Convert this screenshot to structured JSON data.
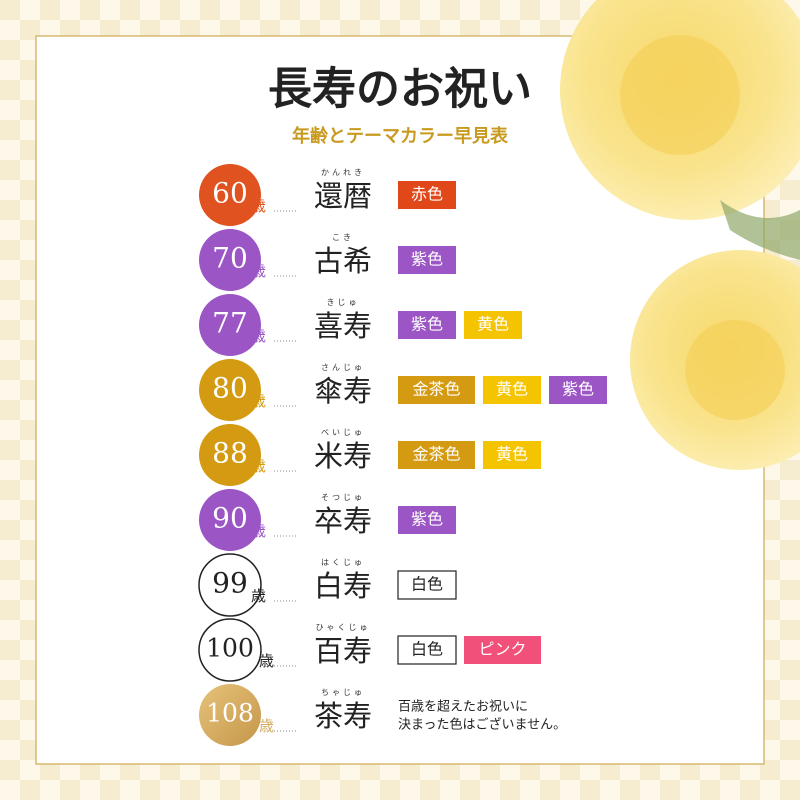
{
  "header": {
    "title": "長寿のお祝い",
    "subtitle": "年齢とテーマカラー早見表"
  },
  "unit": "歳",
  "rows": [
    {
      "age": 60,
      "circle_color": "#e0521f",
      "reading": "かんれき",
      "name": "還暦",
      "colors": [
        {
          "label": "赤色",
          "color": "#e0481a"
        }
      ]
    },
    {
      "age": 70,
      "circle_color": "#9b55c5",
      "reading": "こき",
      "name": "古希",
      "colors": [
        {
          "label": "紫色",
          "color": "#9b55c5"
        }
      ]
    },
    {
      "age": 77,
      "circle_color": "#9b55c5",
      "reading": "きじゅ",
      "name": "喜寿",
      "colors": [
        {
          "label": "紫色",
          "color": "#9b55c5"
        },
        {
          "label": "黄色",
          "color": "#f5c400"
        }
      ]
    },
    {
      "age": 80,
      "circle_color": "#d49b12",
      "reading": "さんじゅ",
      "name": "傘寿",
      "colors": [
        {
          "label": "金茶色",
          "color": "#d49b12"
        },
        {
          "label": "黄色",
          "color": "#f5c400"
        },
        {
          "label": "紫色",
          "color": "#9b55c5"
        }
      ]
    },
    {
      "age": 88,
      "circle_color": "#d49b12",
      "reading": "べいじゅ",
      "name": "米寿",
      "colors": [
        {
          "label": "金茶色",
          "color": "#d49b12"
        },
        {
          "label": "黄色",
          "color": "#f5c400"
        }
      ]
    },
    {
      "age": 90,
      "circle_color": "#9b55c5",
      "reading": "そつじゅ",
      "name": "卒寿",
      "colors": [
        {
          "label": "紫色",
          "color": "#9b55c5"
        }
      ]
    },
    {
      "age": 99,
      "circle_color": "#ffffff",
      "reading": "はくじゅ",
      "name": "白寿",
      "colors": [
        {
          "label": "白色",
          "color": "#ffffff"
        }
      ]
    },
    {
      "age": 100,
      "circle_color": "#ffffff",
      "reading": "ひゃくじゅ",
      "name": "百寿",
      "colors": [
        {
          "label": "白色",
          "color": "#ffffff"
        },
        {
          "label": "ピンク",
          "color": "#f0507a"
        }
      ]
    },
    {
      "age": 108,
      "circle_color": "#d4aa62",
      "reading": "ちゃじゅ",
      "name": "茶寿",
      "note": [
        "百歳を超えたお祝いに",
        "決まった色はございません。"
      ]
    }
  ]
}
